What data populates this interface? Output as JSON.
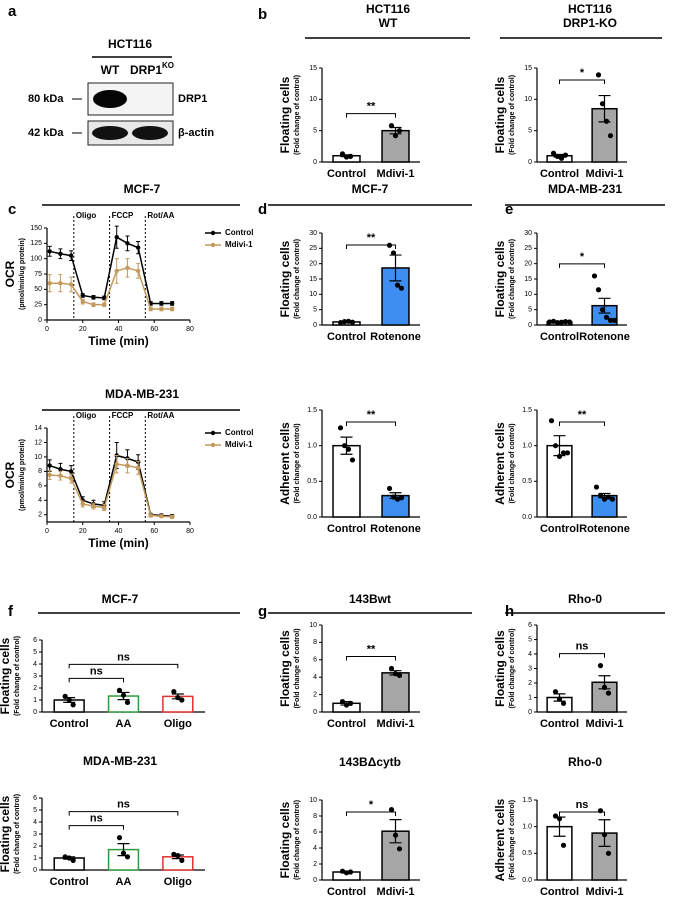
{
  "blot": {
    "panel": "a",
    "cell_line": "HCT116",
    "lane_1": "WT",
    "lane_2": "DRP1",
    "lane_2_sup": "KO",
    "marker_1": "80 kDa",
    "marker_2": "42 kDa",
    "band_1": "DRP1",
    "band_2": "β-actin"
  },
  "chart_data": [
    {
      "type": "bar",
      "panel": "b",
      "title": [
        "HCT116",
        "WT"
      ],
      "ylabel": "Floating cells",
      "ylabel_sub": "(Fold change of control)",
      "categories": [
        "Control",
        "Mdivi-1"
      ],
      "values": [
        1.0,
        5.0
      ],
      "errors": [
        0.15,
        0.5
      ],
      "points": [
        [
          1.3,
          0.8,
          0.9
        ],
        [
          5.8,
          4.2,
          5.0
        ]
      ],
      "colors": [
        "#ffffff",
        "#a6a6a6"
      ],
      "edge_colors": [
        "#000000",
        "#000000"
      ],
      "ylim": [
        0,
        15
      ],
      "yticks": [
        0,
        5,
        10,
        15
      ],
      "brackets": [
        {
          "from": 0,
          "to": 1,
          "label": "**"
        }
      ]
    },
    {
      "type": "bar",
      "title": [
        "HCT116",
        "DRP1-KO"
      ],
      "ylabel": "Floating cells",
      "ylabel_sub": "(Fold change of control)",
      "categories": [
        "Control",
        "Mdivi-1"
      ],
      "values": [
        1.0,
        8.5
      ],
      "errors": [
        0.2,
        2.1
      ],
      "points": [
        [
          1.4,
          0.9,
          0.6,
          1.1
        ],
        [
          13.9,
          9.3,
          6.5,
          4.2
        ]
      ],
      "colors": [
        "#ffffff",
        "#a6a6a6"
      ],
      "edge_colors": [
        "#000000",
        "#000000"
      ],
      "ylim": [
        0,
        15
      ],
      "yticks": [
        0,
        5,
        10,
        15
      ],
      "brackets": [
        {
          "from": 0,
          "to": 1,
          "label": "*"
        }
      ]
    },
    {
      "type": "line",
      "panel": "c",
      "title": "MCF-7",
      "ylabel": "OCR",
      "ylabel_sub": "(pmol/min/ug protein)",
      "xlabel": "Time (min)",
      "x": [
        1.5,
        7.5,
        13.5,
        20,
        26,
        32,
        39,
        45,
        51,
        58,
        64,
        70
      ],
      "series": [
        {
          "name": "Control",
          "color": "#000000",
          "values": [
            112,
            108,
            105,
            40,
            37,
            36,
            135,
            125,
            118,
            27,
            27,
            27
          ],
          "errors": [
            8,
            8,
            8,
            3,
            3,
            3,
            18,
            12,
            10,
            3,
            3,
            3
          ]
        },
        {
          "name": "Mdivi-1",
          "color": "#c49a5c",
          "values": [
            60,
            60,
            58,
            30,
            25,
            25,
            80,
            85,
            80,
            18,
            18,
            18
          ],
          "errors": [
            14,
            14,
            12,
            4,
            3,
            3,
            20,
            15,
            12,
            3,
            3,
            3
          ]
        }
      ],
      "events": [
        {
          "x": 15,
          "label": "Oligo"
        },
        {
          "x": 35,
          "label": "FCCP"
        },
        {
          "x": 55,
          "label": "Rot/AA"
        }
      ],
      "xlim": [
        0,
        80
      ],
      "xticks": [
        0,
        20,
        40,
        60,
        80
      ],
      "ylim": [
        0,
        150
      ],
      "yticks": [
        0,
        25,
        50,
        75,
        100,
        125,
        150
      ]
    },
    {
      "type": "line",
      "title": "MDA-MB-231",
      "ylabel": "OCR",
      "ylabel_sub": "(pmol/min/ug protein)",
      "xlabel": "Time (min)",
      "x": [
        1.5,
        7.5,
        13.5,
        20,
        26,
        32,
        39,
        45,
        51,
        58,
        64,
        70
      ],
      "series": [
        {
          "name": "Control",
          "color": "#000000",
          "values": [
            8.8,
            8.3,
            8.0,
            4.0,
            3.5,
            3.3,
            10.2,
            9.8,
            9.3,
            2.0,
            1.9,
            1.8
          ],
          "errors": [
            0.8,
            0.8,
            0.8,
            0.5,
            0.5,
            0.5,
            1.8,
            1.2,
            1.0,
            0.2,
            0.2,
            0.2
          ]
        },
        {
          "name": "Mdivi-1",
          "color": "#c49a5c",
          "values": [
            7.5,
            7.4,
            7.0,
            3.5,
            3.2,
            3.0,
            9.0,
            8.8,
            8.5,
            1.9,
            1.8,
            1.7
          ],
          "errors": [
            0.6,
            0.6,
            0.6,
            0.4,
            0.4,
            0.4,
            1.2,
            1.0,
            0.9,
            0.2,
            0.2,
            0.2
          ]
        }
      ],
      "events": [
        {
          "x": 15,
          "label": "Oligo"
        },
        {
          "x": 35,
          "label": "FCCP"
        },
        {
          "x": 55,
          "label": "Rot/AA"
        }
      ],
      "xlim": [
        0,
        80
      ],
      "xticks": [
        0,
        20,
        40,
        60,
        80
      ],
      "ylim": [
        1,
        14
      ],
      "yticks": [
        2,
        4,
        6,
        8,
        10,
        12,
        14
      ]
    },
    {
      "type": "bar",
      "panel": "d",
      "title": "MCF-7",
      "ylabel": "Floating cells",
      "ylabel_sub": "(Fold change of control)",
      "categories": [
        "Control",
        "Rotenone"
      ],
      "values": [
        1.0,
        18.6
      ],
      "errors": [
        0.1,
        4.2
      ],
      "points": [
        [
          0.8,
          1.1,
          1.2,
          0.9
        ],
        [
          26,
          23.5,
          13,
          12
        ]
      ],
      "colors": [
        "#ffffff",
        "#3d8ef0"
      ],
      "edge_colors": [
        "#000000",
        "#000000"
      ],
      "ylim": [
        0,
        30
      ],
      "yticks": [
        0,
        5,
        10,
        15,
        20,
        25,
        30
      ],
      "brackets": [
        {
          "from": 0,
          "to": 1,
          "label": "**"
        }
      ]
    },
    {
      "type": "bar",
      "ylabel": "Adherent cells",
      "ylabel_sub": "(Fold change of control)",
      "categories": [
        "Control",
        "Rotenone"
      ],
      "values": [
        1.0,
        0.3
      ],
      "errors": [
        0.12,
        0.04
      ],
      "points": [
        [
          1.25,
          1.0,
          0.95,
          0.8
        ],
        [
          0.4,
          0.28,
          0.25,
          0.27
        ]
      ],
      "colors": [
        "#ffffff",
        "#3d8ef0"
      ],
      "edge_colors": [
        "#000000",
        "#000000"
      ],
      "ylim": [
        0,
        1.5
      ],
      "yticks": [
        {
          "value": 0,
          "label": "0.0"
        },
        0.5,
        {
          "value": 1,
          "label": "1.0"
        },
        1.5
      ],
      "brackets": [
        {
          "from": 0,
          "to": 1,
          "label": "**"
        }
      ]
    },
    {
      "type": "bar",
      "panel": "e",
      "title": "MDA-MB-231",
      "ylabel": "Floating cells",
      "ylabel_sub": "(Fold change of control)",
      "categories": [
        "Control",
        "Rotenone"
      ],
      "values": [
        1.0,
        6.3
      ],
      "errors": [
        0.1,
        2.4
      ],
      "points": [
        [
          1.0,
          1.2,
          0.8,
          0.9,
          1.1,
          1.0
        ],
        [
          16,
          11.5,
          5,
          2.5,
          1.5,
          1.5
        ]
      ],
      "colors": [
        "#ffffff",
        "#3d8ef0"
      ],
      "edge_colors": [
        "#000000",
        "#000000"
      ],
      "ylim": [
        0,
        30
      ],
      "yticks": [
        0,
        5,
        10,
        15,
        20,
        25,
        30
      ],
      "brackets": [
        {
          "from": 0,
          "to": 1,
          "label": "*"
        }
      ]
    },
    {
      "type": "bar",
      "ylabel": "Adherent cells",
      "ylabel_sub": "(Fold change of control)",
      "categories": [
        "Control",
        "Rotenone"
      ],
      "values": [
        1.0,
        0.3
      ],
      "errors": [
        0.14,
        0.03
      ],
      "points": [
        [
          1.35,
          1.0,
          0.85,
          0.9,
          0.9
        ],
        [
          0.42,
          0.3,
          0.25,
          0.28,
          0.25
        ]
      ],
      "colors": [
        "#ffffff",
        "#3d8ef0"
      ],
      "edge_colors": [
        "#000000",
        "#000000"
      ],
      "ylim": [
        0,
        1.5
      ],
      "yticks": [
        {
          "value": 0,
          "label": "0.0"
        },
        0.5,
        {
          "value": 1,
          "label": "1.0"
        },
        1.5
      ],
      "brackets": [
        {
          "from": 0,
          "to": 1,
          "label": "**"
        }
      ]
    },
    {
      "type": "bar",
      "panel": "f",
      "title": "MCF-7",
      "ylabel": "Floating cells",
      "ylabel_sub": "(Fold change of control)",
      "categories": [
        "Control",
        "AA",
        "Oligo"
      ],
      "values": [
        1.0,
        1.33,
        1.3
      ],
      "errors": [
        0.2,
        0.3,
        0.2
      ],
      "points": [
        [
          1.3,
          1.0,
          0.6
        ],
        [
          1.8,
          1.4,
          0.8
        ],
        [
          1.7,
          1.2,
          1.0
        ]
      ],
      "colors": [
        "#ffffff",
        "#ffffff",
        "#ffffff"
      ],
      "edge_colors": [
        "#000000",
        "#2e9a3e",
        "#e0312f"
      ],
      "ylim": [
        0,
        6
      ],
      "yticks": [
        0,
        1,
        2,
        3,
        4,
        5,
        6
      ],
      "brackets": [
        {
          "from": 0,
          "to": 1,
          "label": "ns"
        },
        {
          "from": 0,
          "to": 2,
          "label": "ns"
        }
      ]
    },
    {
      "type": "bar",
      "title": "MDA-MB-231",
      "ylabel": "Floating cells",
      "ylabel_sub": "(Fold change of control)",
      "categories": [
        "Control",
        "AA",
        "Oligo"
      ],
      "values": [
        1.0,
        1.7,
        1.1
      ],
      "errors": [
        0.1,
        0.5,
        0.15
      ],
      "points": [
        [
          1.1,
          1.0,
          0.8
        ],
        [
          2.7,
          1.4,
          1.1
        ],
        [
          1.3,
          1.2,
          0.8
        ]
      ],
      "colors": [
        "#ffffff",
        "#ffffff",
        "#ffffff"
      ],
      "edge_colors": [
        "#000000",
        "#2e9a3e",
        "#e0312f"
      ],
      "ylim": [
        0,
        6
      ],
      "yticks": [
        0,
        1,
        2,
        3,
        4,
        5,
        6
      ],
      "brackets": [
        {
          "from": 0,
          "to": 1,
          "label": "ns"
        },
        {
          "from": 0,
          "to": 2,
          "label": "ns"
        }
      ]
    },
    {
      "type": "bar",
      "panel": "g",
      "title": "143Bwt",
      "ylabel": "Floating cells",
      "ylabel_sub": "(Fold change of control)",
      "categories": [
        "Control",
        "Mdivi-1"
      ],
      "values": [
        1.0,
        4.5
      ],
      "errors": [
        0.2,
        0.25
      ],
      "points": [
        [
          1.2,
          0.8,
          1.0
        ],
        [
          5.0,
          4.4,
          4.2
        ]
      ],
      "colors": [
        "#ffffff",
        "#a6a6a6"
      ],
      "edge_colors": [
        "#000000",
        "#000000"
      ],
      "ylim": [
        0,
        10
      ],
      "yticks": [
        0,
        2,
        4,
        6,
        8,
        10
      ],
      "brackets": [
        {
          "from": 0,
          "to": 1,
          "label": "**"
        }
      ]
    },
    {
      "type": "bar",
      "title": "143BΔcytb",
      "ylabel": "Floating cells",
      "ylabel_sub": "(Fold change of control)",
      "categories": [
        "Control",
        "Mdivi-1"
      ],
      "values": [
        1.0,
        6.1
      ],
      "errors": [
        0.1,
        1.45
      ],
      "points": [
        [
          1.1,
          0.9,
          1.0
        ],
        [
          8.8,
          5.6,
          3.9
        ]
      ],
      "colors": [
        "#ffffff",
        "#a6a6a6"
      ],
      "edge_colors": [
        "#000000",
        "#000000"
      ],
      "ylim": [
        0,
        10
      ],
      "yticks": [
        0,
        2,
        4,
        6,
        8,
        10
      ],
      "brackets": [
        {
          "from": 0,
          "to": 1,
          "label": "*"
        }
      ]
    },
    {
      "type": "bar",
      "panel": "h",
      "title": "Rho-0",
      "ylabel": "Floating cells",
      "ylabel_sub": "(Fold change of control)",
      "categories": [
        "Control",
        "Mdivi-1"
      ],
      "values": [
        1.0,
        2.05
      ],
      "errors": [
        0.25,
        0.45
      ],
      "points": [
        [
          1.4,
          0.9,
          0.6
        ],
        [
          3.2,
          1.7,
          1.3
        ]
      ],
      "colors": [
        "#ffffff",
        "#a6a6a6"
      ],
      "edge_colors": [
        "#000000",
        "#000000"
      ],
      "ylim": [
        0,
        6
      ],
      "yticks": [
        0,
        1,
        2,
        3,
        4,
        5,
        6
      ],
      "brackets": [
        {
          "from": 0,
          "to": 1,
          "label": "ns"
        }
      ]
    },
    {
      "type": "bar",
      "title": "Rho-0",
      "ylabel": "Adherent cells",
      "ylabel_sub": "(Fold change of control)",
      "categories": [
        "Control",
        "Mdivi-1"
      ],
      "values": [
        1.0,
        0.88
      ],
      "errors": [
        0.18,
        0.25
      ],
      "points": [
        [
          1.2,
          1.15,
          0.65
        ],
        [
          1.3,
          0.85,
          0.5
        ]
      ],
      "colors": [
        "#ffffff",
        "#a6a6a6"
      ],
      "edge_colors": [
        "#000000",
        "#000000"
      ],
      "ylim": [
        0,
        1.5
      ],
      "yticks": [
        {
          "value": 0,
          "label": "0.0"
        },
        0.5,
        {
          "value": 1,
          "label": "1.0"
        },
        1.5
      ],
      "brackets": [
        {
          "from": 0,
          "to": 1,
          "label": "ns"
        }
      ]
    }
  ]
}
